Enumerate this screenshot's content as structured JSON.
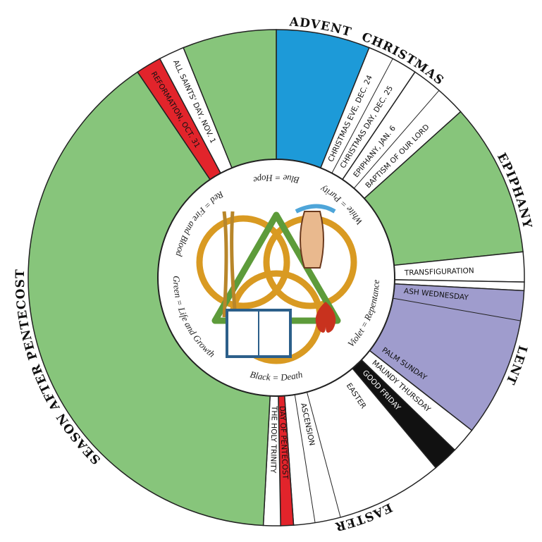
{
  "seasons": [
    {
      "name": "ADVENT"
    },
    {
      "name": "CHRISTMAS"
    },
    {
      "name": "EPIPHANY"
    },
    {
      "name": "LENT"
    },
    {
      "name": "EASTER"
    },
    {
      "name": "SEASON AFTER PENTECOST"
    }
  ],
  "days": [
    {
      "label": "CHRISTMAS EVE, DEC. 24"
    },
    {
      "label": "CHRISTMAS DAY, DEC. 25"
    },
    {
      "label": "EPIPHANY, JAN. 6"
    },
    {
      "label": "BAPTISM OF OUR LORD"
    },
    {
      "label": "TRANSFIGURATION"
    },
    {
      "label": "ASH WEDNESDAY"
    },
    {
      "label": "PALM SUNDAY"
    },
    {
      "label": "MAUNDY THURSDAY"
    },
    {
      "label": "GOOD FRIDAY"
    },
    {
      "label": "EASTER"
    },
    {
      "label": "ASCENSION"
    },
    {
      "label": "DAY OF PENTECOST"
    },
    {
      "label": "THE HOLY TRINITY"
    },
    {
      "label": "REFORMATION, OCT. 31"
    },
    {
      "label": "ALL SAINTS' DAY, NOV. 1"
    }
  ],
  "colors": [
    {
      "text": "Blue = Hope"
    },
    {
      "text": "White = Purity"
    },
    {
      "text": "Violet = Repentance"
    },
    {
      "text": "Black = Death"
    },
    {
      "text": "Green = Life and Growth"
    },
    {
      "text": "Red = Fire and Blood"
    }
  ]
}
